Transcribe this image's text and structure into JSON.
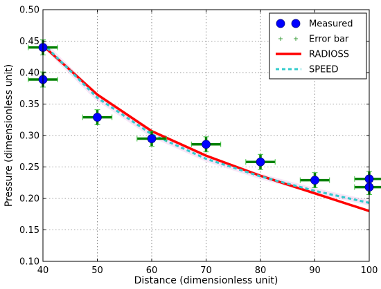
{
  "chart_data": {
    "type": "line",
    "xlabel": "Distance (dimensionless unit)",
    "ylabel": "Pressure (dimensionless unit)",
    "xlim": [
      40,
      100
    ],
    "ylim": [
      0.1,
      0.5
    ],
    "xticks": [
      "40",
      "50",
      "60",
      "70",
      "80",
      "90",
      "100"
    ],
    "yticks": [
      "0.10",
      "0.15",
      "0.20",
      "0.25",
      "0.30",
      "0.35",
      "0.40",
      "0.45",
      "0.50"
    ],
    "grid": true,
    "legend_position": "top-right",
    "series": [
      {
        "name": "Measured",
        "kind": "points",
        "color": "#0000ff",
        "x": [
          40,
          40,
          50,
          60,
          70,
          80,
          90,
          100,
          100
        ],
        "y": [
          0.44,
          0.389,
          0.329,
          0.295,
          0.286,
          0.258,
          0.229,
          0.231,
          0.218
        ]
      },
      {
        "name": "Error bar",
        "kind": "errorbar",
        "color": "#008000",
        "x": [
          40,
          40,
          50,
          60,
          70,
          80,
          90,
          100,
          100
        ],
        "y": [
          0.44,
          0.389,
          0.329,
          0.295,
          0.286,
          0.258,
          0.229,
          0.231,
          0.218
        ],
        "xerr": 2.7,
        "yerr": 0.012
      },
      {
        "name": "RADIOSS",
        "kind": "line",
        "color": "#ff0000",
        "x": [
          40,
          50,
          60,
          70,
          80,
          90,
          100
        ],
        "y": [
          0.443,
          0.365,
          0.307,
          0.268,
          0.236,
          0.208,
          0.18
        ]
      },
      {
        "name": "SPEED",
        "kind": "dashed",
        "color": "#33cccc",
        "x": [
          40,
          50,
          60,
          70,
          80,
          90,
          100
        ],
        "y": [
          0.446,
          0.36,
          0.302,
          0.263,
          0.235,
          0.212,
          0.193
        ]
      }
    ]
  }
}
